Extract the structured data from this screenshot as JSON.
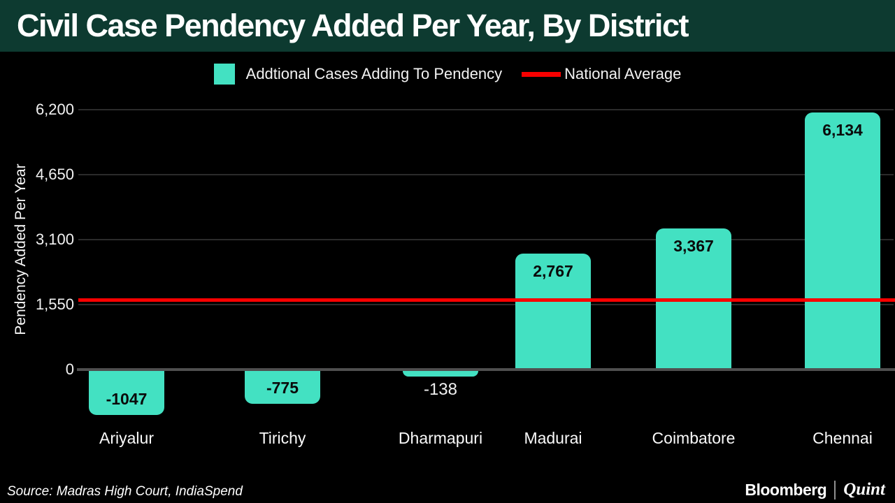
{
  "header": {
    "title": "Civil Case Pendency Added Per Year, By District"
  },
  "legend": {
    "series_label": "Addtional Cases Adding To Pendency",
    "average_label": "National Average"
  },
  "colors": {
    "bar": "#43e1c2",
    "average_line": "#f80000",
    "header_bg": "#0d3a30",
    "background": "#000000"
  },
  "chart_data": {
    "type": "bar",
    "title": "Civil Case Pendency Added Per Year, By District",
    "categories": [
      "Ariyalur",
      "Tirichy",
      "Dharmapuri",
      "Madurai",
      "Coimbatore",
      "Chennai"
    ],
    "values": [
      -1047,
      -775,
      -138,
      2767,
      3367,
      6134
    ],
    "value_labels": [
      "-1047",
      "-775",
      "-138",
      "2,767",
      "3,367",
      "6,134"
    ],
    "national_average": 1675,
    "xlabel": "",
    "ylabel": "Pendency Added Per Year",
    "yticks": [
      0,
      1550,
      3100,
      4650,
      6200
    ],
    "ytick_labels": [
      "0",
      "1,550",
      "3,100",
      "4,650",
      "6,200"
    ],
    "ylim": [
      -1300,
      6200
    ],
    "grid": "horizontal",
    "legend_position": "top"
  },
  "footer": {
    "source": "Source: Madras High Court, IndiaSpend",
    "brand_left": "Bloomberg",
    "brand_right": "Quint"
  }
}
